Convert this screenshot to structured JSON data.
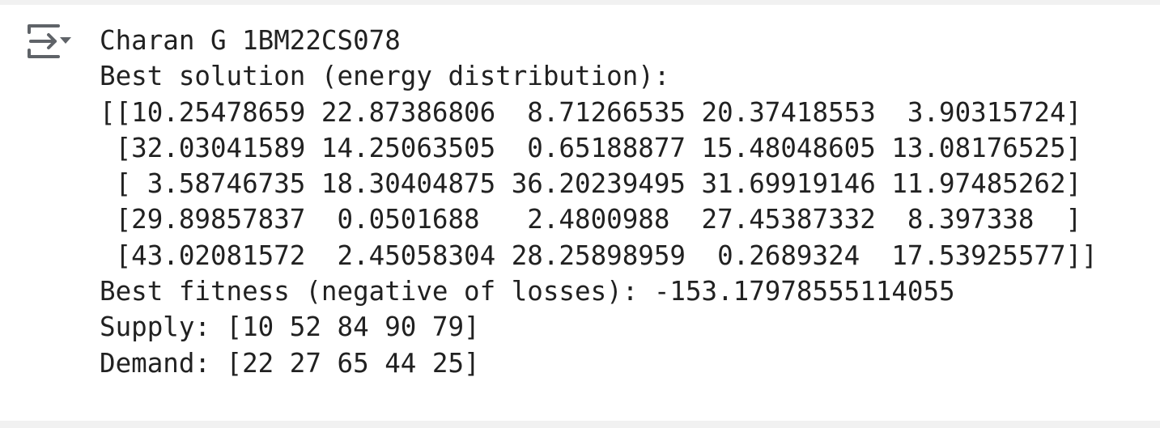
{
  "output": {
    "lines": [
      "Charan G 1BM22CS078",
      "Best solution (energy distribution):",
      "[[10.25478659 22.87386806  8.71266535 20.37418553  3.90315724]",
      " [32.03041589 14.25063505  0.65188877 15.48048605 13.08176525]",
      " [ 3.58746735 18.30404875 36.20239495 31.69919146 11.97485262]",
      " [29.89857837  0.0501688   2.4800988  27.45387332  8.397338  ]",
      " [43.02081572  2.45058304 28.25898959  0.2689324  17.53925577]]",
      "Best fitness (negative of losses): -153.17978555114055",
      "Supply: [10 52 84 90 79]",
      "Demand: [22 27 65 44 25]"
    ]
  }
}
